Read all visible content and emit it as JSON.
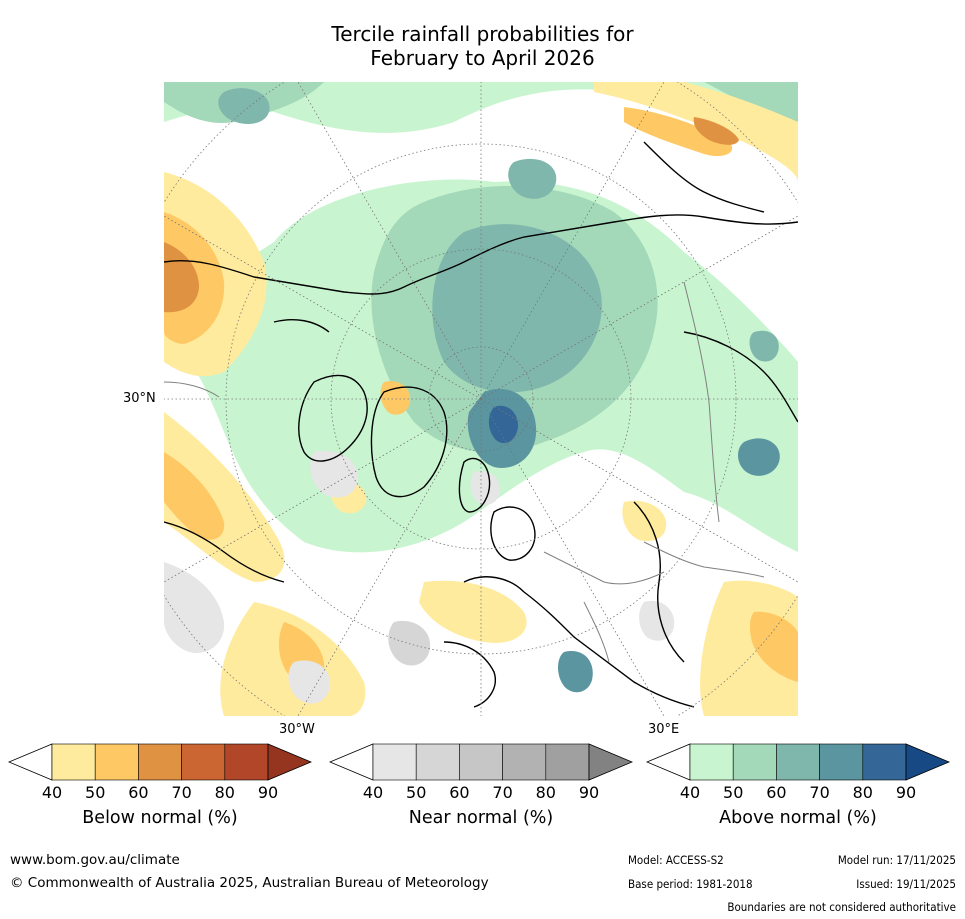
{
  "title": {
    "line1": "Tercile rainfall probabilities for",
    "line2": "February to April 2026"
  },
  "map": {
    "projection": "north-polar-stereographic",
    "lat_label": "30°N",
    "lon_labels": {
      "west": "30°W",
      "east": "30°E"
    },
    "boundary_note": "Boundaries are not considered authoritative"
  },
  "legend": {
    "tick_values": [
      "40",
      "50",
      "60",
      "70",
      "80",
      "90"
    ],
    "below": {
      "label": "Below normal (%)",
      "under_color": "#ffffff",
      "colors": [
        "#ffeb9e",
        "#fec965",
        "#df9242",
        "#cb6531",
        "#b14728"
      ],
      "over_color": "#953520"
    },
    "near": {
      "label": "Near normal (%)",
      "under_color": "#ffffff",
      "colors": [
        "#e6e6e6",
        "#d6d6d6",
        "#c6c6c6",
        "#b2b2b2",
        "#a0a0a0"
      ],
      "over_color": "#828282"
    },
    "above": {
      "label": "Above normal (%)",
      "under_color": "#ffffff",
      "colors": [
        "#c8f5d0",
        "#a3d9b9",
        "#80b7ac",
        "#5a95a0",
        "#346697"
      ],
      "over_color": "#174a85"
    }
  },
  "footer": {
    "website": "www.bom.gov.au/climate",
    "copyright": "© Commonwealth of Australia 2025, Australian Bureau of Meteorology",
    "model": "Model: ACCESS-S2",
    "base_period": "Base period: 1981-2018",
    "model_run": "Model run: 17/11/2025",
    "issued": "Issued: 19/11/2025",
    "disclaimer": "Boundaries are not considered authoritative"
  }
}
